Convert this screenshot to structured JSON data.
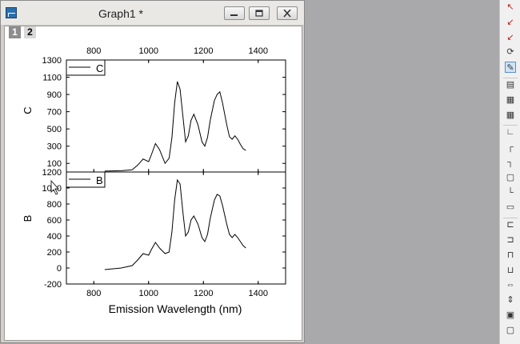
{
  "window": {
    "title": "Graph1 *",
    "layers": [
      "1",
      "2"
    ]
  },
  "chart_data": {
    "type": "line",
    "xlabel": "Emission Wavelength (nm)",
    "xlim": [
      700,
      1500
    ],
    "x_ticks": [
      "800",
      "1000",
      "1200",
      "1400"
    ],
    "grid": false,
    "panels": [
      {
        "ylabel": "C",
        "ylim": [
          0,
          1300
        ],
        "y_ticks": [
          "100",
          "300",
          "500",
          "700",
          "900",
          "1100",
          "1300"
        ],
        "legend": "C",
        "series": [
          {
            "name": "C",
            "x": [
              840,
              900,
              940,
              960,
              980,
              1000,
              1010,
              1025,
              1040,
              1060,
              1075,
              1085,
              1095,
              1105,
              1115,
              1125,
              1135,
              1145,
              1155,
              1165,
              1180,
              1195,
              1205,
              1215,
              1225,
              1240,
              1250,
              1260,
              1270,
              1285,
              1295,
              1305,
              1315,
              1325,
              1335,
              1345,
              1355
            ],
            "y": [
              10,
              15,
              25,
              80,
              150,
              120,
              200,
              330,
              260,
              100,
              160,
              400,
              800,
              1050,
              960,
              650,
              350,
              420,
              600,
              670,
              550,
              350,
              300,
              400,
              600,
              830,
              900,
              930,
              800,
              550,
              410,
              380,
              420,
              380,
              320,
              270,
              250
            ]
          }
        ]
      },
      {
        "ylabel": "B",
        "ylim": [
          -200,
          1200
        ],
        "y_ticks": [
          "-200",
          "0",
          "200",
          "400",
          "600",
          "800",
          "1000",
          "1200"
        ],
        "legend": "B",
        "series": [
          {
            "name": "B",
            "x": [
              840,
              900,
              940,
              960,
              980,
              1000,
              1010,
              1025,
              1040,
              1060,
              1075,
              1085,
              1095,
              1105,
              1115,
              1125,
              1135,
              1145,
              1155,
              1165,
              1180,
              1195,
              1205,
              1215,
              1225,
              1240,
              1250,
              1260,
              1270,
              1285,
              1295,
              1305,
              1315,
              1325,
              1335,
              1345,
              1355
            ],
            "y": [
              -20,
              0,
              30,
              100,
              180,
              160,
              230,
              320,
              250,
              180,
              200,
              450,
              850,
              1100,
              1050,
              700,
              400,
              450,
              600,
              650,
              550,
              380,
              330,
              420,
              620,
              850,
              920,
              900,
              780,
              550,
              420,
              380,
              420,
              380,
              330,
              280,
              250
            ]
          }
        ]
      }
    ]
  },
  "toolbar": {
    "icons": [
      "scale-in-icon",
      "draw-data-icon",
      "region-icon",
      "rotate-icon",
      "speed-mode-icon",
      "layer-icon",
      "merge-icon",
      "arrange-icon",
      "axis-l-icon",
      "axis-t-icon",
      "axis-r-icon",
      "axis-box-icon",
      "axis-lb-icon",
      "axis-misc-icon",
      "align-left-icon",
      "align-center-icon",
      "align-top-icon",
      "align-bottom-icon",
      "same-width-icon",
      "same-height-icon",
      "group-icon",
      "ungroup-icon"
    ]
  }
}
